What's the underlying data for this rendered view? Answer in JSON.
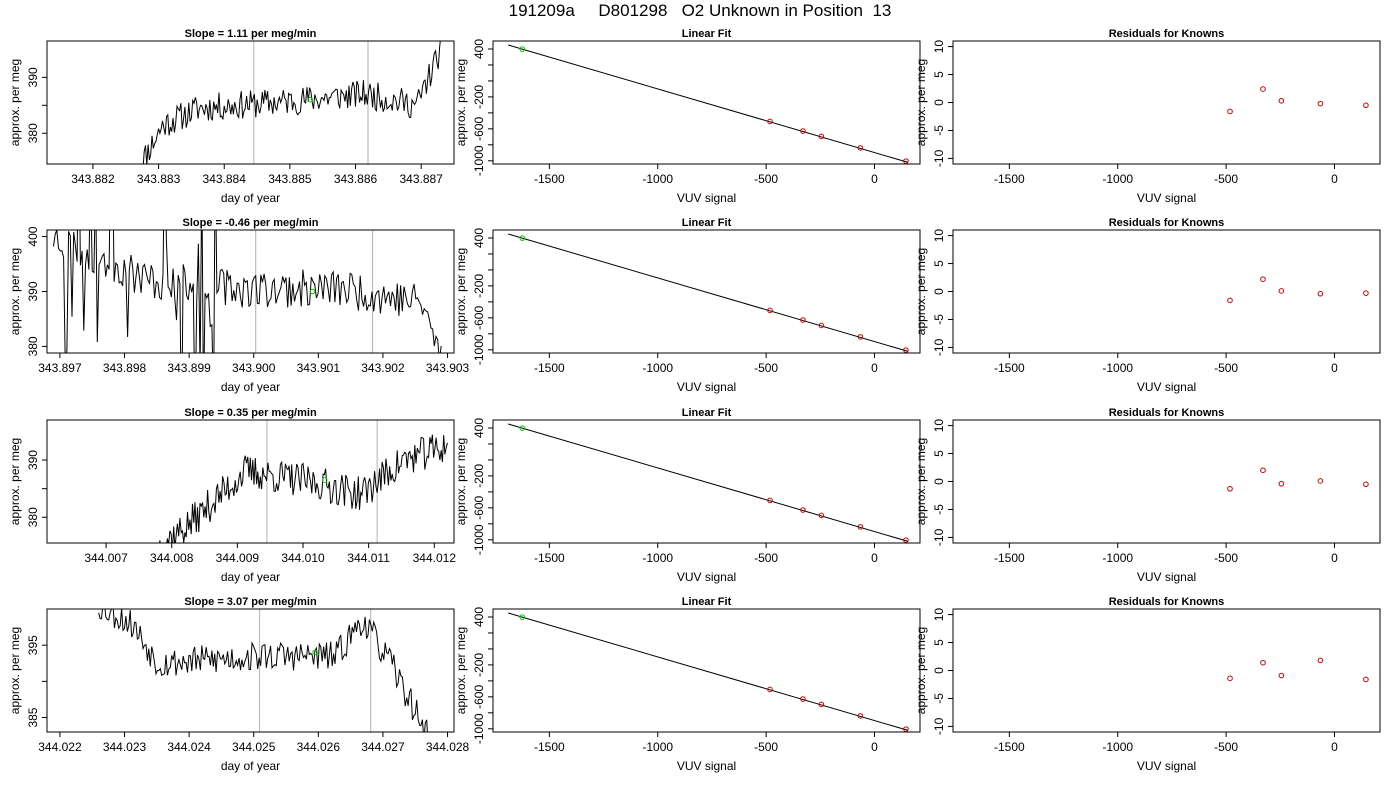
{
  "page": {
    "title": "191209a     D801298   O2 Unknown in Position  13"
  },
  "colors": {
    "trace": "#000000",
    "marker_green": "#00c800",
    "marker_red": "#cc0000",
    "vline": "#bebebe",
    "frame": "#000000"
  },
  "chart_data": [
    {
      "type": "line",
      "title": "Slope =  1.11  per meg/min",
      "xlabel": "day of year",
      "ylabel": "approx. per meg",
      "xlim": [
        343.8813,
        343.8875
      ],
      "ylim": [
        374.5,
        396.5
      ],
      "xticks": [
        343.882,
        343.883,
        343.884,
        343.885,
        343.886,
        343.887
      ],
      "xticklabels": [
        "343.882",
        "343.883",
        "343.884",
        "343.885",
        "343.886",
        "343.887"
      ],
      "yticks": [
        380,
        385,
        390
      ],
      "yticklabels": [
        "380",
        "",
        "390"
      ],
      "series": [
        {
          "seed": 11,
          "x_start": 343.8827,
          "x_end": 343.8873,
          "base": 384.5,
          "noise": 1.6,
          "drift": 2.0,
          "shape": [
            [
              0,
              374.0
            ],
            [
              0.08,
              381.5
            ],
            [
              0.2,
              384.5
            ],
            [
              0.45,
              385.5
            ],
            [
              0.75,
              387.0
            ],
            [
              0.92,
              385.0
            ],
            [
              1.0,
              395.0
            ]
          ]
        }
      ],
      "vlines": [
        343.88445,
        343.88619
      ],
      "points": [
        {
          "x": 343.88531,
          "y": 386.0
        }
      ]
    },
    {
      "type": "line",
      "title": "Linear Fit",
      "xlabel": "VUV signal",
      "ylabel": "approx. per meg",
      "xlim": [
        -1760,
        210
      ],
      "ylim": [
        -1040,
        500
      ],
      "xticks": [
        -1500,
        -1000,
        -500,
        0
      ],
      "xticklabels": [
        "-1500",
        "-1000",
        "-500",
        "0"
      ],
      "yticks": [
        -1000,
        -800,
        -600,
        -400,
        -200,
        0,
        200,
        400
      ],
      "yticklabels": [
        "-1000",
        "",
        "-600",
        "",
        "-200",
        "",
        "",
        "400"
      ],
      "fit_line": [
        [
          -1690,
          450
        ],
        [
          155,
          -1020
        ]
      ],
      "green_points": [
        {
          "x": -1625,
          "y": 398
        }
      ],
      "red_points": [
        {
          "x": -482,
          "y": -507
        },
        {
          "x": -330,
          "y": -627
        },
        {
          "x": -245,
          "y": -695
        },
        {
          "x": -65,
          "y": -838
        },
        {
          "x": 145,
          "y": -1004
        }
      ]
    },
    {
      "type": "scatter",
      "title": "Residuals for Knowns",
      "xlabel": "VUV signal",
      "ylabel": "approx. per meg",
      "xlim": [
        -1760,
        210
      ],
      "ylim": [
        -11,
        11
      ],
      "xticks": [
        -1500,
        -1000,
        -500,
        0
      ],
      "xticklabels": [
        "-1500",
        "-1000",
        "-500",
        "0"
      ],
      "yticks": [
        -10,
        -5,
        0,
        5,
        10
      ],
      "yticklabels": [
        "-10",
        "-5",
        "0",
        "5",
        "10"
      ],
      "red_points": [
        {
          "x": -482,
          "y": -1.6
        },
        {
          "x": -330,
          "y": 2.4
        },
        {
          "x": -245,
          "y": 0.3
        },
        {
          "x": -65,
          "y": -0.2
        },
        {
          "x": 145,
          "y": -0.5
        }
      ]
    },
    {
      "type": "line",
      "title": "Slope =  -0.46  per meg/min",
      "xlabel": "day of year",
      "ylabel": "approx. per meg",
      "xlim": [
        343.8968,
        343.9031
      ],
      "ylim": [
        378.8,
        401.2
      ],
      "xticks": [
        343.897,
        343.898,
        343.899,
        343.9,
        343.901,
        343.902,
        343.903
      ],
      "xticklabels": [
        "343.897",
        "343.898",
        "343.899",
        "343.900",
        "343.901",
        "343.902",
        "343.903"
      ],
      "yticks": [
        380,
        390,
        400
      ],
      "yticklabels": [
        "380",
        "390",
        "400"
      ],
      "series": [
        {
          "seed": 23,
          "x_start": 343.8969,
          "x_end": 343.9029,
          "base": 390.0,
          "noise": 2.2,
          "drift": 0.0,
          "wild": [
            0.0,
            0.42
          ],
          "wild_amp": 18,
          "shape": [
            [
              0,
              400.0
            ],
            [
              0.25,
              392.0
            ],
            [
              0.5,
              390.5
            ],
            [
              0.75,
              390.5
            ],
            [
              0.95,
              388.0
            ],
            [
              1.0,
              378.0
            ]
          ]
        }
      ],
      "vlines": [
        343.90003,
        343.90184
      ],
      "points": [
        {
          "x": 343.90091,
          "y": 390.0
        }
      ]
    },
    {
      "type": "line",
      "title": "Linear Fit",
      "xlabel": "VUV signal",
      "ylabel": "approx. per meg",
      "xlim": [
        -1760,
        210
      ],
      "ylim": [
        -1040,
        500
      ],
      "xticks": [
        -1500,
        -1000,
        -500,
        0
      ],
      "xticklabels": [
        "-1500",
        "-1000",
        "-500",
        "0"
      ],
      "yticks": [
        -1000,
        -800,
        -600,
        -400,
        -200,
        0,
        200,
        400
      ],
      "yticklabels": [
        "-1000",
        "",
        "-600",
        "",
        "-200",
        "",
        "",
        "400"
      ],
      "fit_line": [
        [
          -1690,
          450
        ],
        [
          155,
          -1020
        ]
      ],
      "green_points": [
        {
          "x": -1625,
          "y": 398
        }
      ],
      "red_points": [
        {
          "x": -482,
          "y": -507
        },
        {
          "x": -330,
          "y": -627
        },
        {
          "x": -245,
          "y": -695
        },
        {
          "x": -65,
          "y": -838
        },
        {
          "x": 145,
          "y": -1004
        }
      ]
    },
    {
      "type": "scatter",
      "title": "Residuals for Knowns",
      "xlabel": "VUV signal",
      "ylabel": "approx. per meg",
      "xlim": [
        -1760,
        210
      ],
      "ylim": [
        -11,
        11
      ],
      "xticks": [
        -1500,
        -1000,
        -500,
        0
      ],
      "xticklabels": [
        "-1500",
        "-1000",
        "-500",
        "0"
      ],
      "yticks": [
        -10,
        -5,
        0,
        5,
        10
      ],
      "yticklabels": [
        "-10",
        "-5",
        "0",
        "5",
        "10"
      ],
      "red_points": [
        {
          "x": -482,
          "y": -1.6
        },
        {
          "x": -330,
          "y": 2.2
        },
        {
          "x": -245,
          "y": 0.1
        },
        {
          "x": -65,
          "y": -0.4
        },
        {
          "x": 145,
          "y": -0.3
        }
      ]
    },
    {
      "type": "line",
      "title": "Slope =  0.35  per meg/min",
      "xlabel": "day of year",
      "ylabel": "approx. per meg",
      "xlim": [
        344.0061,
        344.0123
      ],
      "ylim": [
        375.5,
        397.0
      ],
      "xticks": [
        344.007,
        344.008,
        344.009,
        344.01,
        344.011,
        344.012
      ],
      "xticklabels": [
        "344.007",
        "344.008",
        "344.009",
        "344.010",
        "344.011",
        "344.012"
      ],
      "yticks": [
        380,
        385,
        390
      ],
      "yticklabels": [
        "380",
        "",
        "390"
      ],
      "series": [
        {
          "seed": 37,
          "x_start": 344.0078,
          "x_end": 344.0122,
          "base": 386.0,
          "noise": 1.9,
          "drift": 3.5,
          "shape": [
            [
              0,
              375.0
            ],
            [
              0.1,
              378.5
            ],
            [
              0.3,
              388.0
            ],
            [
              0.55,
              386.0
            ],
            [
              0.7,
              384.0
            ],
            [
              0.85,
              390.0
            ],
            [
              1.0,
              392.5
            ]
          ]
        }
      ],
      "vlines": [
        344.00945,
        344.01113
      ],
      "points": [
        {
          "x": 344.01033,
          "y": 386.5
        }
      ]
    },
    {
      "type": "line",
      "title": "Linear Fit",
      "xlabel": "VUV signal",
      "ylabel": "approx. per meg",
      "xlim": [
        -1760,
        210
      ],
      "ylim": [
        -1040,
        500
      ],
      "xticks": [
        -1500,
        -1000,
        -500,
        0
      ],
      "xticklabels": [
        "-1500",
        "-1000",
        "-500",
        "0"
      ],
      "yticks": [
        -1000,
        -800,
        -600,
        -400,
        -200,
        0,
        200,
        400
      ],
      "yticklabels": [
        "-1000",
        "",
        "-600",
        "",
        "-200",
        "",
        "",
        "400"
      ],
      "fit_line": [
        [
          -1690,
          450
        ],
        [
          155,
          -1020
        ]
      ],
      "green_points": [
        {
          "x": -1625,
          "y": 398
        }
      ],
      "red_points": [
        {
          "x": -482,
          "y": -507
        },
        {
          "x": -330,
          "y": -627
        },
        {
          "x": -245,
          "y": -695
        },
        {
          "x": -65,
          "y": -838
        },
        {
          "x": 145,
          "y": -1004
        }
      ]
    },
    {
      "type": "scatter",
      "title": "Residuals for Knowns",
      "xlabel": "VUV signal",
      "ylabel": "approx. per meg",
      "xlim": [
        -1760,
        210
      ],
      "ylim": [
        -11,
        11
      ],
      "xticks": [
        -1500,
        -1000,
        -500,
        0
      ],
      "xticklabels": [
        "-1500",
        "-1000",
        "-500",
        "0"
      ],
      "yticks": [
        -10,
        -5,
        0,
        5,
        10
      ],
      "yticklabels": [
        "-10",
        "-5",
        "0",
        "5",
        "10"
      ],
      "red_points": [
        {
          "x": -482,
          "y": -1.3
        },
        {
          "x": -330,
          "y": 2.0
        },
        {
          "x": -245,
          "y": -0.4
        },
        {
          "x": -65,
          "y": 0.1
        },
        {
          "x": 145,
          "y": -0.5
        }
      ]
    },
    {
      "type": "line",
      "title": "Slope =  3.07  per meg/min",
      "xlabel": "day of year",
      "ylabel": "approx. per meg",
      "xlim": [
        344.0218,
        344.0281
      ],
      "ylim": [
        383.0,
        400.0
      ],
      "xticks": [
        344.022,
        344.023,
        344.024,
        344.025,
        344.026,
        344.027,
        344.028
      ],
      "xticklabels": [
        "344.022",
        "344.023",
        "344.024",
        "344.025",
        "344.026",
        "344.027",
        "344.028"
      ],
      "yticks": [
        385,
        390,
        395
      ],
      "yticklabels": [
        "385",
        "",
        "395"
      ],
      "series": [
        {
          "seed": 53,
          "x_start": 344.0226,
          "x_end": 344.0277,
          "base": 393.0,
          "noise": 1.3,
          "drift": 0.0,
          "shape": [
            [
              0,
              400.5
            ],
            [
              0.1,
              398.0
            ],
            [
              0.18,
              392.5
            ],
            [
              0.5,
              393.5
            ],
            [
              0.72,
              393.5
            ],
            [
              0.8,
              398.5
            ],
            [
              0.88,
              393.0
            ],
            [
              1.0,
              382.5
            ]
          ]
        }
      ],
      "vlines": [
        344.02509,
        344.02681
      ],
      "points": [
        {
          "x": 344.02595,
          "y": 394.0
        }
      ]
    },
    {
      "type": "line",
      "title": "Linear Fit",
      "xlabel": "VUV signal",
      "ylabel": "approx. per meg",
      "xlim": [
        -1760,
        210
      ],
      "ylim": [
        -1040,
        500
      ],
      "xticks": [
        -1500,
        -1000,
        -500,
        0
      ],
      "xticklabels": [
        "-1500",
        "-1000",
        "-500",
        "0"
      ],
      "yticks": [
        -1000,
        -800,
        -600,
        -400,
        -200,
        0,
        200,
        400
      ],
      "yticklabels": [
        "-1000",
        "",
        "-600",
        "",
        "-200",
        "",
        "",
        "400"
      ],
      "fit_line": [
        [
          -1690,
          450
        ],
        [
          155,
          -1020
        ]
      ],
      "green_points": [
        {
          "x": -1625,
          "y": 398
        }
      ],
      "red_points": [
        {
          "x": -482,
          "y": -507
        },
        {
          "x": -330,
          "y": -627
        },
        {
          "x": -245,
          "y": -695
        },
        {
          "x": -65,
          "y": -838
        },
        {
          "x": 145,
          "y": -1004
        }
      ]
    },
    {
      "type": "scatter",
      "title": "Residuals for Knowns",
      "xlabel": "VUV signal",
      "ylabel": "approx. per meg",
      "xlim": [
        -1760,
        210
      ],
      "ylim": [
        -11,
        11
      ],
      "xticks": [
        -1500,
        -1000,
        -500,
        0
      ],
      "xticklabels": [
        "-1500",
        "-1000",
        "-500",
        "0"
      ],
      "yticks": [
        -10,
        -5,
        0,
        5,
        10
      ],
      "yticklabels": [
        "-10",
        "-5",
        "0",
        "5",
        "10"
      ],
      "red_points": [
        {
          "x": -482,
          "y": -1.4
        },
        {
          "x": -330,
          "y": 1.4
        },
        {
          "x": -245,
          "y": -0.9
        },
        {
          "x": -65,
          "y": 1.8
        },
        {
          "x": 145,
          "y": -1.6
        }
      ]
    }
  ]
}
